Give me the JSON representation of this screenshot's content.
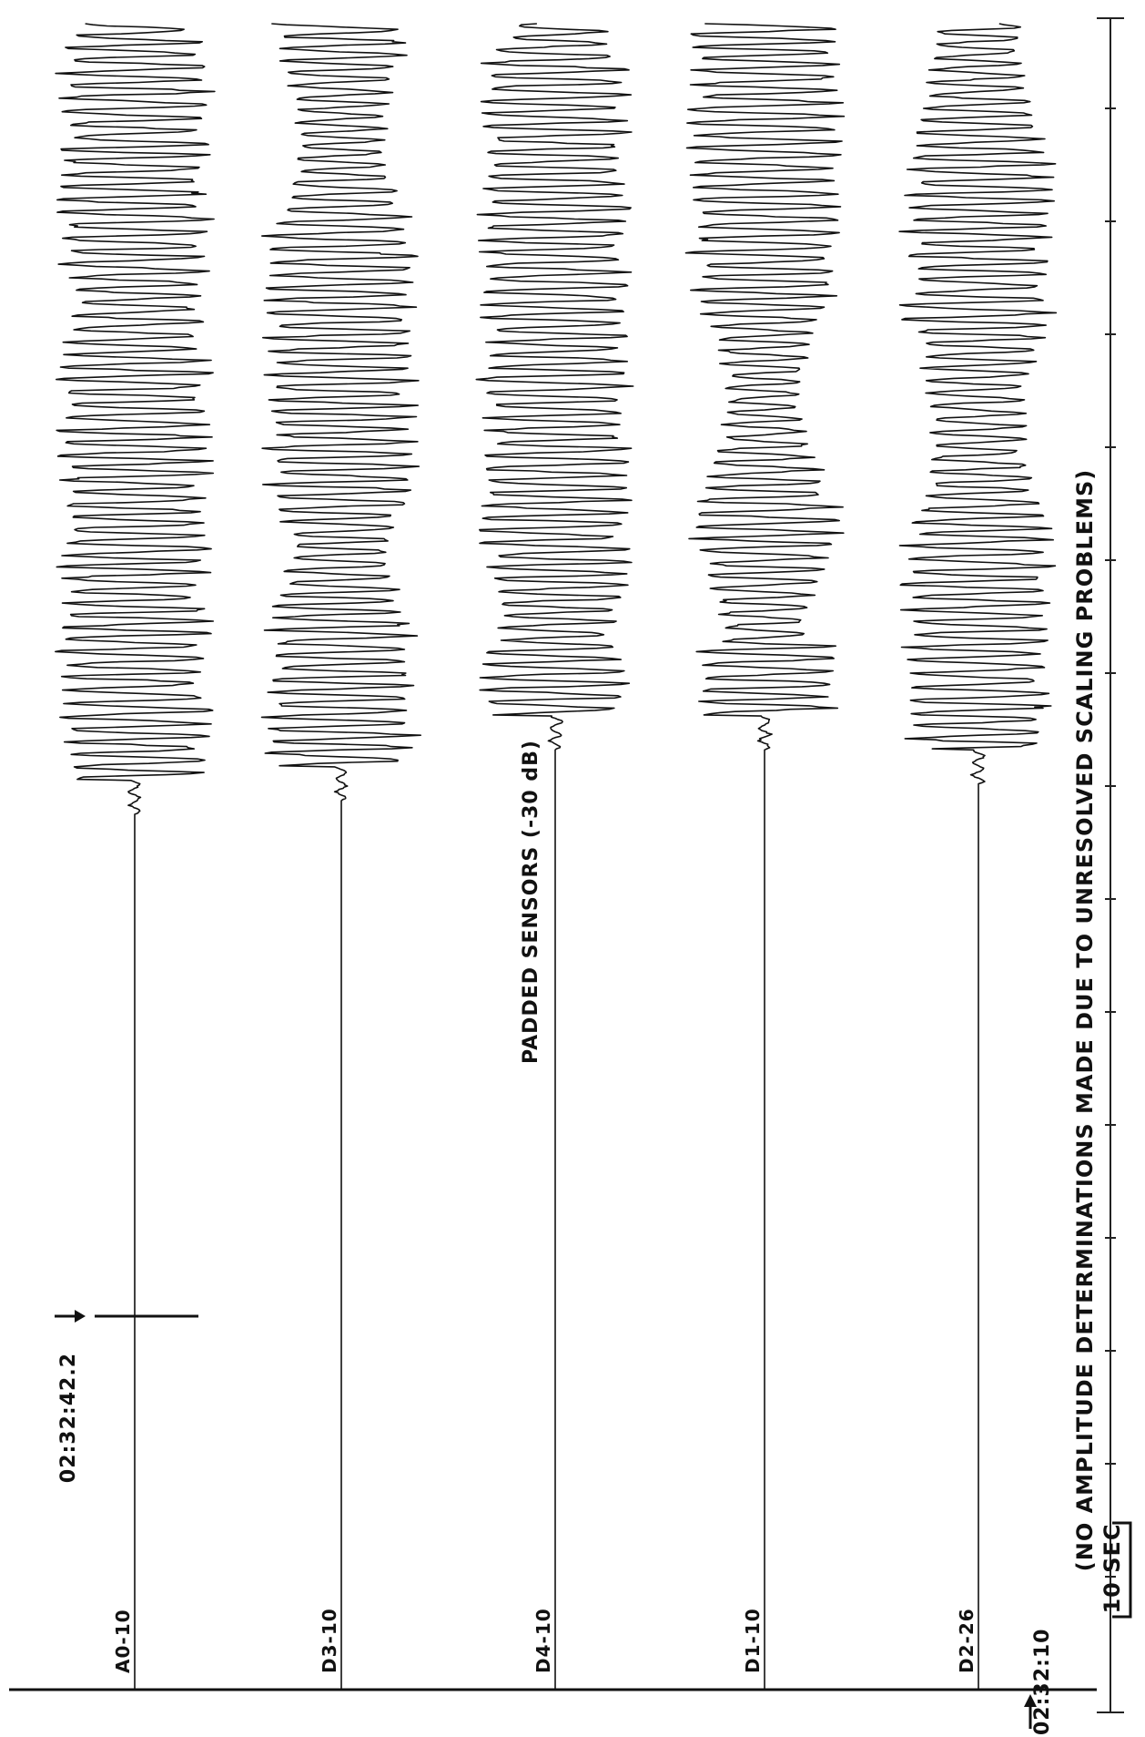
{
  "chart_data": {
    "type": "line",
    "title": "PADDED SENSORS (-30 dB)",
    "title_partial": "",
    "x_axis": "time",
    "x_start_label": "02:32:10",
    "onset_label": "02:32:42.2",
    "scale_bar_label": "10 SEC",
    "footnote": "(NO AMPLITUDE DETERMINATIONS MADE DUE TO UNRESOLVED SCALING PROBLEMS)",
    "series": [
      {
        "name": "A0-10",
        "onset_s": 32.2,
        "peak_amplitude": 1.0
      },
      {
        "name": "D3-10",
        "onset_s": 32.7,
        "peak_amplitude": 1.0
      },
      {
        "name": "D4-10",
        "onset_s": 34.5,
        "peak_amplitude": 1.0
      },
      {
        "name": "D1-10",
        "onset_s": 34.5,
        "peak_amplitude": 1.0
      },
      {
        "name": "D2-26",
        "onset_s": 33.3,
        "peak_amplitude": 1.0
      }
    ],
    "amplitude_units": "",
    "grid": false
  }
}
